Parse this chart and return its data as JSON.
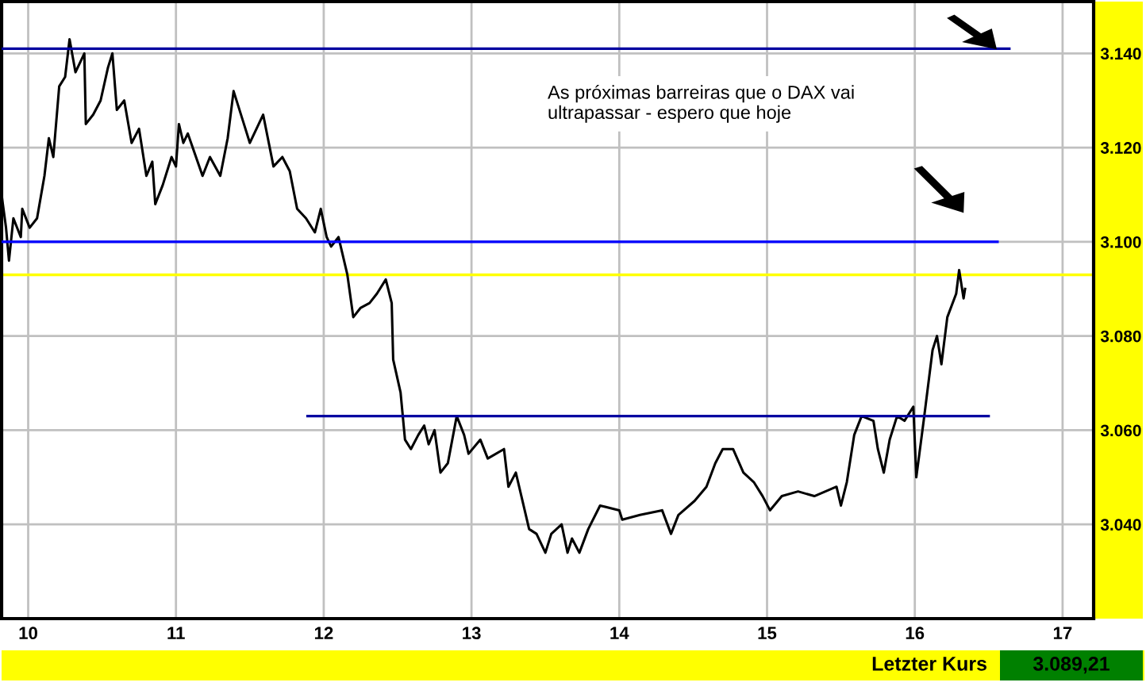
{
  "chart_data": {
    "type": "line",
    "xlim": [
      9.82,
      17.21
    ],
    "xticks": [
      10,
      11,
      12,
      13,
      14,
      15,
      16,
      17
    ],
    "ylim": [
      3020,
      3151
    ],
    "yticks": [
      {
        "value": 3040,
        "label": "3.040"
      },
      {
        "value": 3060,
        "label": "3.060"
      },
      {
        "value": 3080,
        "label": "3.080"
      },
      {
        "value": 3100,
        "label": "3.100"
      },
      {
        "value": 3120,
        "label": "3.120"
      },
      {
        "value": 3140,
        "label": "3.140"
      }
    ],
    "grid": true,
    "marker": "none",
    "line_style": "solid",
    "series": [
      {
        "color": "#000000",
        "x": [
          9.82,
          9.85,
          9.87,
          9.9,
          9.95,
          9.96,
          10.01,
          10.06,
          10.11,
          10.14,
          10.17,
          10.21,
          10.25,
          10.28,
          10.32,
          10.38,
          10.39,
          10.44,
          10.49,
          10.54,
          10.57,
          10.6,
          10.65,
          10.7,
          10.75,
          10.8,
          10.84,
          10.86,
          10.91,
          10.97,
          11.0,
          11.02,
          11.05,
          11.08,
          11.18,
          11.23,
          11.3,
          11.35,
          11.39,
          11.46,
          11.5,
          11.59,
          11.66,
          11.72,
          11.77,
          11.82,
          11.88,
          11.94,
          11.98,
          12.02,
          12.05,
          12.1,
          12.16,
          12.2,
          12.25,
          12.31,
          12.36,
          12.42,
          12.46,
          12.47,
          12.52,
          12.55,
          12.59,
          12.64,
          12.68,
          12.71,
          12.75,
          12.79,
          12.84,
          12.9,
          12.95,
          12.98,
          13.06,
          13.11,
          13.22,
          13.25,
          13.3,
          13.36,
          13.39,
          13.44,
          13.5,
          13.54,
          13.61,
          13.65,
          13.68,
          13.73,
          13.79,
          13.87,
          14.0,
          14.02,
          14.14,
          14.29,
          14.35,
          14.4,
          14.51,
          14.59,
          14.65,
          14.7,
          14.77,
          14.84,
          14.91,
          14.97,
          15.02,
          15.1,
          15.21,
          15.32,
          15.47,
          15.5,
          15.54,
          15.59,
          15.64,
          15.72,
          15.75,
          15.79,
          15.83,
          15.88,
          15.93,
          15.99,
          16.01,
          16.06,
          16.12,
          16.15,
          16.18,
          16.22,
          16.28,
          16.3,
          16.33,
          16.34
        ],
        "values": [
          3110,
          3103,
          3096,
          3105,
          3101,
          3107,
          3103,
          3105,
          3114,
          3122,
          3118,
          3133,
          3135,
          3143,
          3136,
          3140,
          3125,
          3127,
          3130,
          3137,
          3140,
          3128,
          3130,
          3121,
          3124,
          3114,
          3117,
          3108,
          3112,
          3118,
          3116,
          3125,
          3121,
          3123,
          3114,
          3118,
          3114,
          3122,
          3132,
          3125,
          3121,
          3127,
          3116,
          3118,
          3115,
          3107,
          3105,
          3102,
          3107,
          3101,
          3099,
          3101,
          3093,
          3084,
          3086,
          3087,
          3089,
          3092,
          3087,
          3075,
          3068,
          3058,
          3056,
          3059,
          3061,
          3057,
          3060,
          3051,
          3053,
          3063,
          3059,
          3055,
          3058,
          3054,
          3056,
          3048,
          3051,
          3043,
          3039,
          3038,
          3034,
          3038,
          3040,
          3034,
          3037,
          3034,
          3039,
          3044,
          3043,
          3041,
          3042,
          3043,
          3038,
          3042,
          3045,
          3048,
          3053,
          3056,
          3056,
          3051,
          3049,
          3046,
          3043,
          3046,
          3047,
          3046,
          3048,
          3044,
          3049,
          3059,
          3063,
          3062,
          3056,
          3051,
          3058,
          3063,
          3062,
          3065,
          3050,
          3062,
          3077,
          3080,
          3074,
          3084,
          3089,
          3094,
          3088,
          3090
        ]
      },
      {
        "type": "line",
        "color": "#0000a0",
        "x": [
          9.82,
          16.64
        ],
        "values": [
          3141,
          3141
        ]
      },
      {
        "type": "line",
        "color": "#0000ff",
        "x": [
          9.82,
          16.56
        ],
        "values": [
          3100,
          3100
        ]
      },
      {
        "type": "line",
        "color": "#0000a0",
        "x": [
          11.89,
          16.5
        ],
        "values": [
          3063,
          3063
        ]
      }
    ],
    "ref_lines": [
      {
        "axis": "y",
        "value": 3093,
        "color": "#ffff00"
      }
    ],
    "annotations": [
      "As próximas barreiras que o DAX vai ultrapassar - espero que hoje",
      "Letzter Kurs",
      "3.089,21"
    ]
  }
}
